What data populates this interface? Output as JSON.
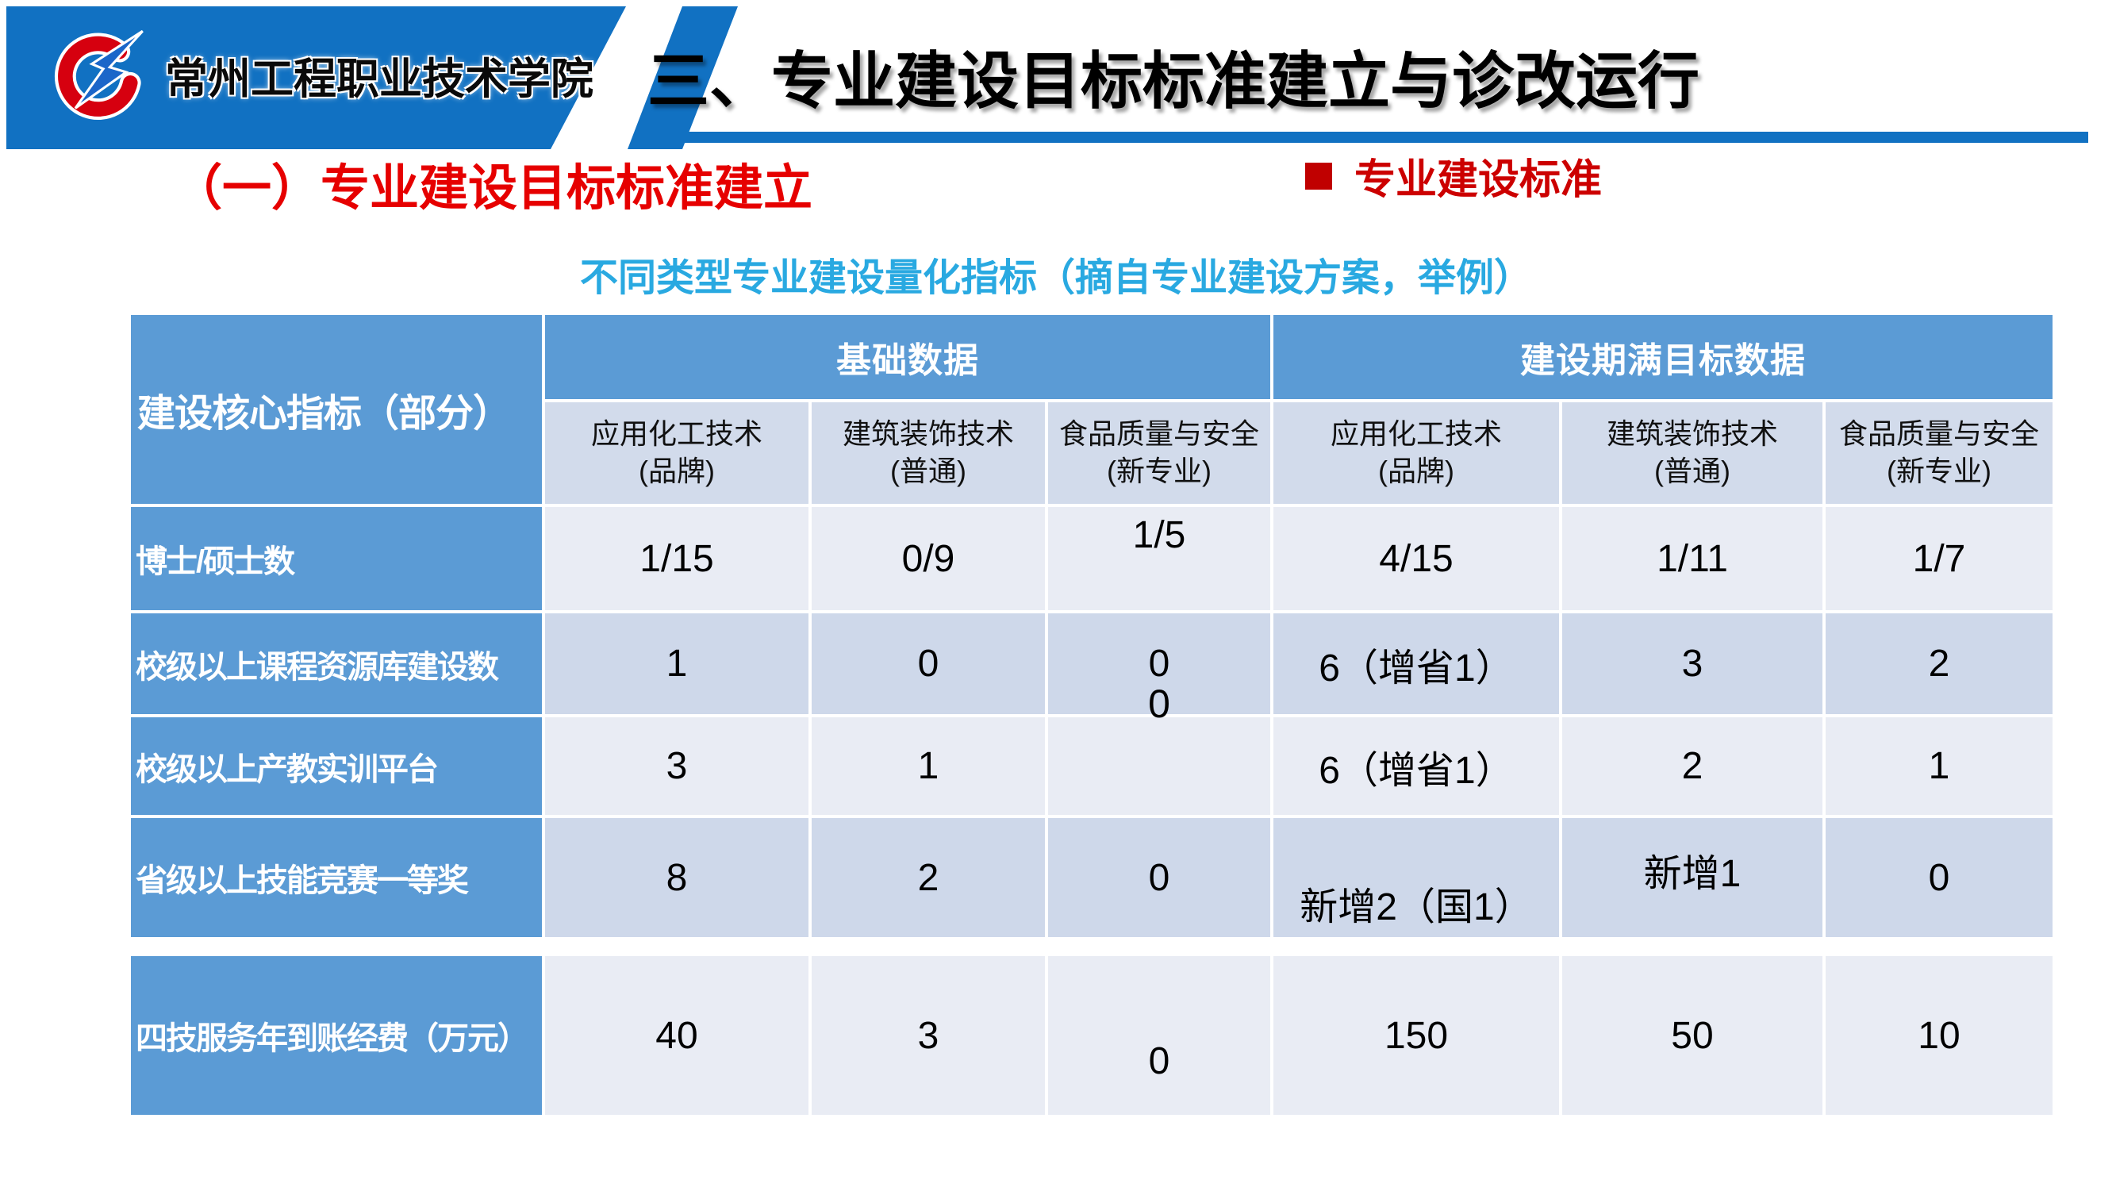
{
  "slide": {
    "logo": {
      "icon": "school-logo-swoosh-icon",
      "text": "常州工程职业技术学院"
    },
    "title": "三、专业建设目标标准建立与诊改运行",
    "section_heading": "（一）专业建设目标标准建立",
    "bullet": {
      "icon": "red-square",
      "label": "专业建设标准"
    },
    "table_title": "不同类型专业建设量化指标（摘自专业建设方案，举例）",
    "colors": {
      "banner_blue": "#1171C2",
      "header_blue": "#5B9BD5",
      "subheader_bg": "#D2DBEB",
      "row_light": "#E9ECF4",
      "row_dark": "#CED8EA",
      "red": "#E60000",
      "cyan": "#29A9E1"
    }
  },
  "table": {
    "corner_header": "建设核心指标（部分）",
    "group_headers": [
      "基础数据",
      "建设期满目标数据"
    ],
    "column_headers": [
      {
        "line1": "应用化工技术",
        "line2": "(品牌)"
      },
      {
        "line1": "建筑装饰技术",
        "line2": "(普通)"
      },
      {
        "line1": "食品质量与安全",
        "line2": "(新专业)"
      },
      {
        "line1": "应用化工技术",
        "line2": "(品牌)"
      },
      {
        "line1": "建筑装饰技术",
        "line2": "(普通)"
      },
      {
        "line1": "食品质量与安全",
        "line2": "(新专业)"
      }
    ],
    "rows": [
      {
        "label": "博士/硕士数",
        "cells": [
          {
            "text": "1/15"
          },
          {
            "text": "0/9"
          },
          {
            "text": "1/5",
            "valign": "raise"
          },
          {
            "text": "4/15"
          },
          {
            "text": "1/11"
          },
          {
            "text": "1/7"
          }
        ]
      },
      {
        "label": "校级以上课程资源库建设数",
        "cells": [
          {
            "text": "1"
          },
          {
            "text": "0"
          },
          {
            "text": "0"
          },
          {
            "text": "6（增省1）"
          },
          {
            "text": "3"
          },
          {
            "text": "2"
          }
        ]
      },
      {
        "label": "校级以上产教实训平台",
        "cells": [
          {
            "text": "3"
          },
          {
            "text": "1"
          },
          {
            "text": ""
          },
          {
            "text": "6（增省1）"
          },
          {
            "text": "2"
          },
          {
            "text": "1"
          }
        ]
      },
      {
        "label": "省级以上技能竞赛一等奖",
        "cells": [
          {
            "text": "8"
          },
          {
            "text": "2"
          },
          {
            "text": "0"
          },
          {
            "text": "新增2（国1）",
            "valign": "lower"
          },
          {
            "text": "新增1",
            "valign": "raise-slight"
          },
          {
            "text": "0"
          }
        ]
      },
      {
        "label": "四技服务年到账经费（万元）",
        "cells": [
          {
            "text": "40"
          },
          {
            "text": "3"
          },
          {
            "text": "0",
            "valign": "lower"
          },
          {
            "text": "150"
          },
          {
            "text": "50"
          },
          {
            "text": "10"
          }
        ]
      }
    ],
    "floating_value": "0"
  }
}
